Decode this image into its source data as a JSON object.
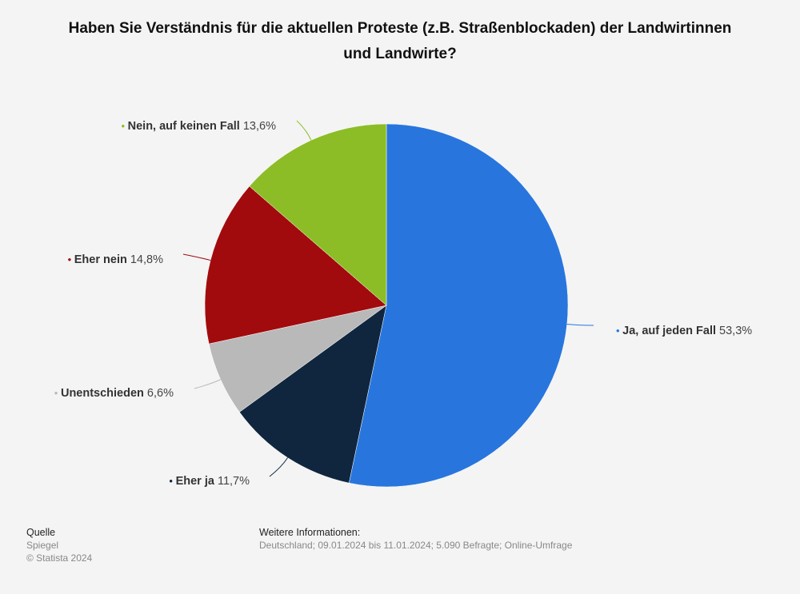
{
  "title": "Haben Sie Verständnis für die aktuellen Proteste (z.B. Straßenblockaden) der Landwirtinnen und Landwirte?",
  "chart_data": {
    "type": "pie",
    "title": "Haben Sie Verständnis für die aktuellen Proteste (z.B. Straßenblockaden) der Landwirtinnen und Landwirte?",
    "unit": "%",
    "legend": "labels-beside-slices",
    "slices": [
      {
        "label": "Ja, auf jeden Fall",
        "value": 53.3,
        "value_text": "53,3%",
        "color": "#2876dd"
      },
      {
        "label": "Eher ja",
        "value": 11.7,
        "value_text": "11,7%",
        "color": "#10263e"
      },
      {
        "label": "Unentschieden",
        "value": 6.6,
        "value_text": "6,6%",
        "color": "#b9b9b9"
      },
      {
        "label": "Eher nein",
        "value": 14.8,
        "value_text": "14,8%",
        "color": "#a20b0d"
      },
      {
        "label": "Nein, auf keinen Fall",
        "value": 13.6,
        "value_text": "13,6%",
        "color": "#8cbd27"
      }
    ]
  },
  "footer": {
    "source_heading": "Quelle",
    "source_name": "Spiegel",
    "copyright": "© Statista 2024",
    "info_heading": "Weitere Informationen:",
    "info_text": "Deutschland; 09.01.2024 bis 11.01.2024; 5.090 Befragte; Online-Umfrage"
  }
}
